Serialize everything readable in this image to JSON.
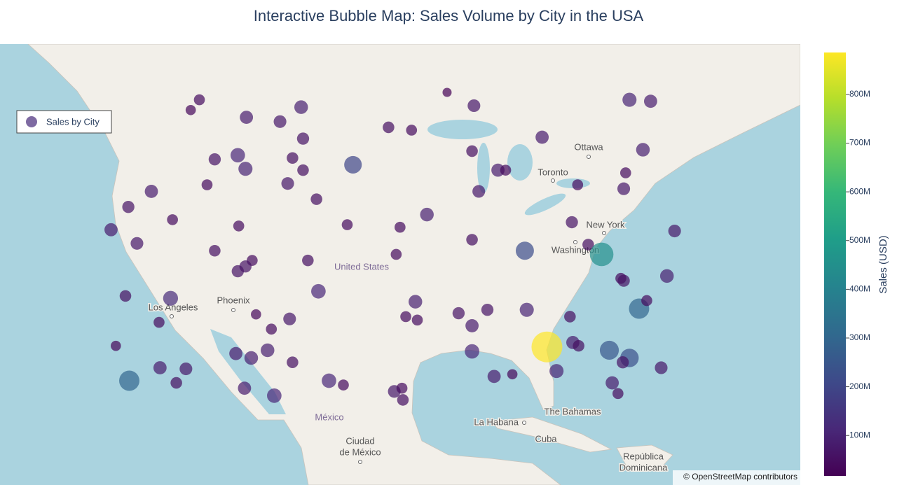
{
  "chart_data": {
    "type": "scattermap",
    "title": "Interactive Bubble Map: Sales Volume by City in the USA",
    "series": [
      {
        "name": "Sales by City",
        "lat": [
          49.5,
          48.8,
          48.3,
          48.0,
          49.0,
          46.8,
          45.6,
          45.3,
          44.6,
          45.4,
          44.5,
          43.5,
          43.4,
          42.9,
          41.7,
          40.7,
          39.9,
          38.8,
          40.2,
          38.2,
          37.4,
          36.9,
          36.5,
          37.4,
          42.3,
          44.9,
          40.3,
          47.6,
          47.4,
          50.0,
          49.1,
          46.9,
          45.9,
          44.5,
          44.5,
          42.9,
          40.1,
          41.1,
          37.9,
          39.1,
          38.2,
          40.5,
          43.4,
          38.7,
          37.9,
          49.5,
          49.4,
          46.0,
          44.3,
          43.1,
          39.8,
          35.9,
          35.7,
          36.1,
          33.3,
          34.0,
          32.6,
          33.2,
          33.2,
          32.9,
          31.8,
          33.9,
          32.6,
          32.3,
          34.8,
          32.8,
          32.4,
          31.5,
          34.2,
          34.4,
          32.1,
          30.0,
          29.3,
          28.9,
          29.6,
          28.5,
          28.0,
          27.9,
          26.6,
          26.8,
          26.1,
          25.4,
          26.8,
          26.4,
          25.8,
          26.1,
          25.0,
          29.5,
          27.2,
          27.4,
          29.9,
          27.7,
          30.3,
          30.0,
          29.6,
          28.9,
          28.5,
          28.0,
          26.6,
          25.6
        ],
        "lon": [
          -116.2,
          -117.1,
          -111.3,
          -107.8,
          -105.6,
          -105.4,
          -112.2,
          -114.6,
          -111.4,
          -106.5,
          -105.4,
          -107.0,
          -115.4,
          -121.2,
          -123.6,
          -119.0,
          -125.4,
          -122.7,
          -112.1,
          -114.6,
          -110.7,
          -111.4,
          -112.2,
          -104.9,
          -104.0,
          -100.2,
          -100.8,
          -96.5,
          -94.1,
          -90.4,
          -87.6,
          -80.5,
          -87.8,
          -85.1,
          -84.3,
          -87.1,
          -95.3,
          -92.5,
          -95.7,
          -87.8,
          -82.3,
          -77.4,
          -76.8,
          -75.7,
          -74.3,
          -71.4,
          -69.2,
          -70.0,
          -71.8,
          -72.0,
          -66.7,
          -72.3,
          -72.0,
          -67.5,
          -70.4,
          -69.6,
          -77.6,
          -82.1,
          -86.2,
          -89.2,
          -87.8,
          -93.7,
          -94.7,
          -93.5,
          -103.8,
          -110.3,
          -106.8,
          -108.7,
          -119.2,
          -123.9,
          -120.4,
          -124.9,
          -112.4,
          -110.8,
          -109.1,
          -106.5,
          -120.3,
          -117.6,
          -118.6,
          -123.5,
          -111.5,
          -108.4,
          -102.7,
          -101.2,
          -95.9,
          -95.1,
          -95.0,
          -87.8,
          -85.5,
          -83.6,
          -80.0,
          -79.0,
          -77.3,
          -76.7,
          -73.5,
          -71.4,
          -72.1,
          -68.1,
          -73.2,
          -72.6
        ],
        "values": [
          40000000,
          30000000,
          80000000,
          70000000,
          90000000,
          60000000,
          110000000,
          60000000,
          100000000,
          50000000,
          50000000,
          70000000,
          40000000,
          80000000,
          60000000,
          40000000,
          80000000,
          70000000,
          40000000,
          50000000,
          40000000,
          60000000,
          60000000,
          50000000,
          50000000,
          200000000,
          40000000,
          50000000,
          40000000,
          17000000,
          70000000,
          80000000,
          50000000,
          80000000,
          40000000,
          70000000,
          40000000,
          90000000,
          40000000,
          50000000,
          220000000,
          60000000,
          40000000,
          50000000,
          450000000,
          100000000,
          80000000,
          90000000,
          40000000,
          70000000,
          70000000,
          40000000,
          60000000,
          90000000,
          300000000,
          40000000,
          50000000,
          100000000,
          60000000,
          60000000,
          80000000,
          90000000,
          40000000,
          40000000,
          110000000,
          30000000,
          70000000,
          40000000,
          120000000,
          50000000,
          40000000,
          30000000,
          80000000,
          90000000,
          90000000,
          50000000,
          80000000,
          70000000,
          50000000,
          300000000,
          80000000,
          110000000,
          110000000,
          40000000,
          70000000,
          40000000,
          50000000,
          110000000,
          80000000,
          30000000,
          886000000,
          100000000,
          80000000,
          50000000,
          250000000,
          230000000,
          60000000,
          70000000,
          80000000,
          40000000
        ]
      }
    ],
    "colorscale": "Viridis",
    "colorbar": {
      "title": "Sales (USD)",
      "clim": [
        17000000,
        886000000
      ],
      "ticks": [
        {
          "value": 100000000,
          "label": "100M"
        },
        {
          "value": 200000000,
          "label": "200M"
        },
        {
          "value": 300000000,
          "label": "300M"
        },
        {
          "value": 400000000,
          "label": "400M"
        },
        {
          "value": 500000000,
          "label": "500M"
        },
        {
          "value": 600000000,
          "label": "600M"
        },
        {
          "value": 700000000,
          "label": "700M"
        },
        {
          "value": 800000000,
          "label": "800M"
        }
      ]
    },
    "map_labels": [
      "Ottawa",
      "Toronto",
      "New York",
      "Washington",
      "United States",
      "Phoenix",
      "Los Angeles",
      "México",
      "Ciudad",
      "de México",
      "La Habana",
      "The Bahamas",
      "Cuba",
      "República",
      "Dominicana"
    ],
    "attribution": "© OpenStreetMap contributors"
  }
}
